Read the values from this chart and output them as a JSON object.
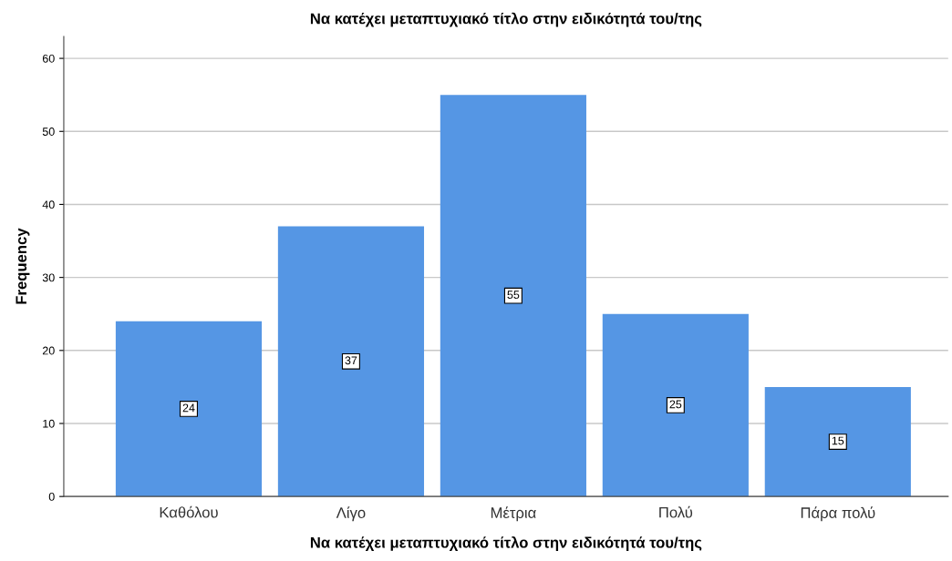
{
  "chart_data": {
    "type": "bar",
    "title": "Να κατέχει μεταπτυχιακό τίτλο στην ειδικότητά του/της",
    "xlabel": "Να κατέχει μεταπτυχιακό τίτλο στην ειδικότητά του/της",
    "ylabel": "Frequency",
    "categories": [
      "Καθόλου",
      "Λίγο",
      "Μέτρια",
      "Πολύ",
      "Πάρα πολύ"
    ],
    "values": [
      24,
      37,
      55,
      25,
      15
    ],
    "color": "#5596e4",
    "ylim": [
      0,
      63
    ],
    "yticks": [
      0,
      10,
      20,
      30,
      40,
      50,
      60
    ],
    "grid": "y",
    "data_labels": true
  }
}
